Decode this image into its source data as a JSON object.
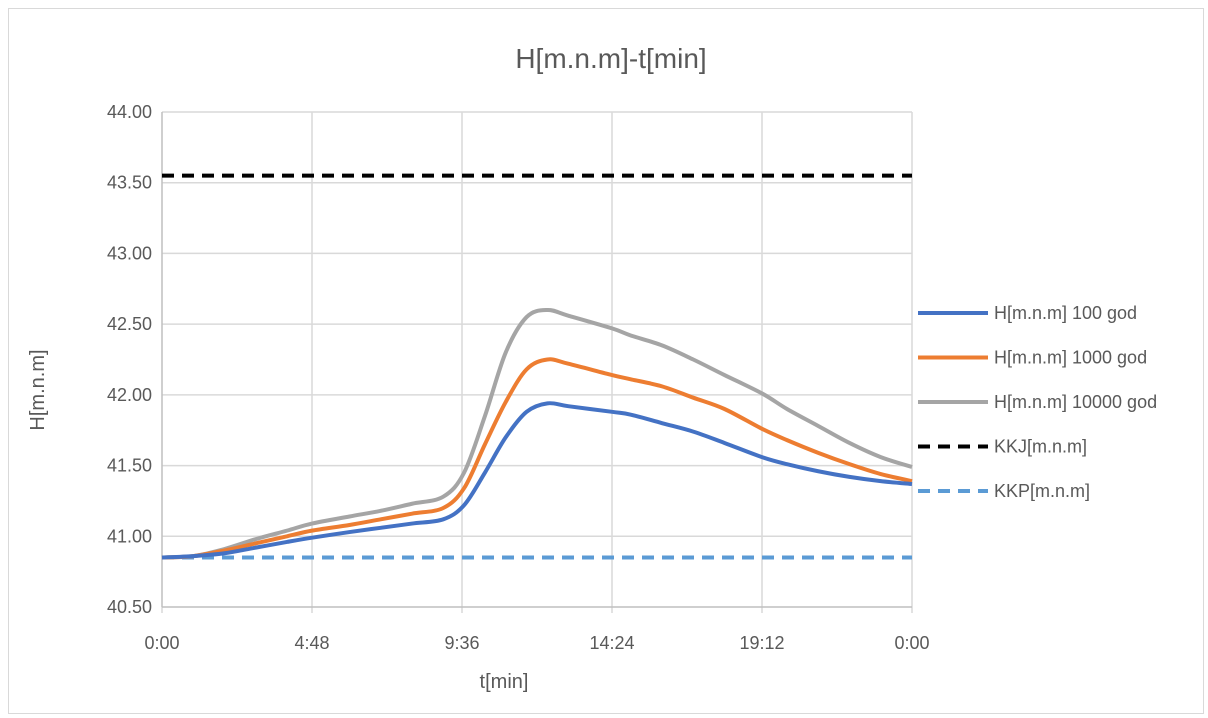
{
  "chart_data": {
    "type": "line",
    "title": "H[m.n.m]-t[min]",
    "xlabel": "t[min]",
    "ylabel": "H[m.n.m]",
    "x_ticks": [
      "0:00",
      "4:48",
      "9:36",
      "14:24",
      "19:12",
      "0:00"
    ],
    "xlim_minutes": [
      0,
      1440
    ],
    "y_ticks": [
      "40.50",
      "41.00",
      "41.50",
      "42.00",
      "42.50",
      "43.00",
      "43.50",
      "44.00"
    ],
    "ylim": [
      40.5,
      44.0
    ],
    "grid": true,
    "legend_position": "right",
    "series": [
      {
        "name": "H[m.n.m] 100 god",
        "color": "#4472C4",
        "style": "solid",
        "x_minutes": [
          0,
          60,
          120,
          180,
          240,
          288,
          360,
          420,
          480,
          540,
          580,
          620,
          660,
          700,
          740,
          780,
          864,
          900,
          960,
          1020,
          1080,
          1152,
          1200,
          1260,
          1320,
          1380,
          1440
        ],
        "y": [
          40.85,
          40.86,
          40.88,
          40.92,
          40.96,
          40.99,
          41.03,
          41.06,
          41.09,
          41.12,
          41.22,
          41.45,
          41.7,
          41.88,
          41.94,
          41.92,
          41.88,
          41.86,
          41.8,
          41.74,
          41.66,
          41.56,
          41.51,
          41.46,
          41.42,
          41.39,
          41.37
        ]
      },
      {
        "name": "H[m.n.m] 1000 god",
        "color": "#ED7D31",
        "style": "solid",
        "x_minutes": [
          0,
          60,
          120,
          180,
          240,
          288,
          360,
          420,
          480,
          540,
          580,
          620,
          660,
          700,
          740,
          780,
          864,
          900,
          960,
          1020,
          1080,
          1152,
          1200,
          1260,
          1320,
          1380,
          1440
        ],
        "y": [
          40.85,
          40.86,
          40.9,
          40.95,
          41.0,
          41.04,
          41.08,
          41.12,
          41.16,
          41.2,
          41.34,
          41.65,
          41.95,
          42.18,
          42.25,
          42.22,
          42.14,
          42.11,
          42.06,
          41.98,
          41.9,
          41.76,
          41.68,
          41.59,
          41.51,
          41.44,
          41.39
        ]
      },
      {
        "name": "H[m.n.m] 10000 god",
        "color": "#A5A5A5",
        "style": "solid",
        "x_minutes": [
          0,
          60,
          120,
          180,
          240,
          288,
          360,
          420,
          480,
          540,
          580,
          620,
          660,
          700,
          740,
          780,
          864,
          900,
          960,
          1020,
          1080,
          1152,
          1200,
          1260,
          1320,
          1380,
          1440
        ],
        "y": [
          40.85,
          40.86,
          40.91,
          40.98,
          41.04,
          41.09,
          41.14,
          41.18,
          41.23,
          41.28,
          41.45,
          41.85,
          42.3,
          42.55,
          42.6,
          42.56,
          42.47,
          42.42,
          42.35,
          42.25,
          42.14,
          42.01,
          41.9,
          41.78,
          41.66,
          41.56,
          41.49
        ]
      },
      {
        "name": "KKJ[m.n.m]",
        "color": "#000000",
        "style": "dashed",
        "x_minutes": [
          0,
          1440
        ],
        "y": [
          43.55,
          43.55
        ]
      },
      {
        "name": "KKP[m.n.m]",
        "color": "#5B9BD5",
        "style": "dashed",
        "x_minutes": [
          0,
          1440
        ],
        "y": [
          40.85,
          40.85
        ]
      }
    ]
  }
}
